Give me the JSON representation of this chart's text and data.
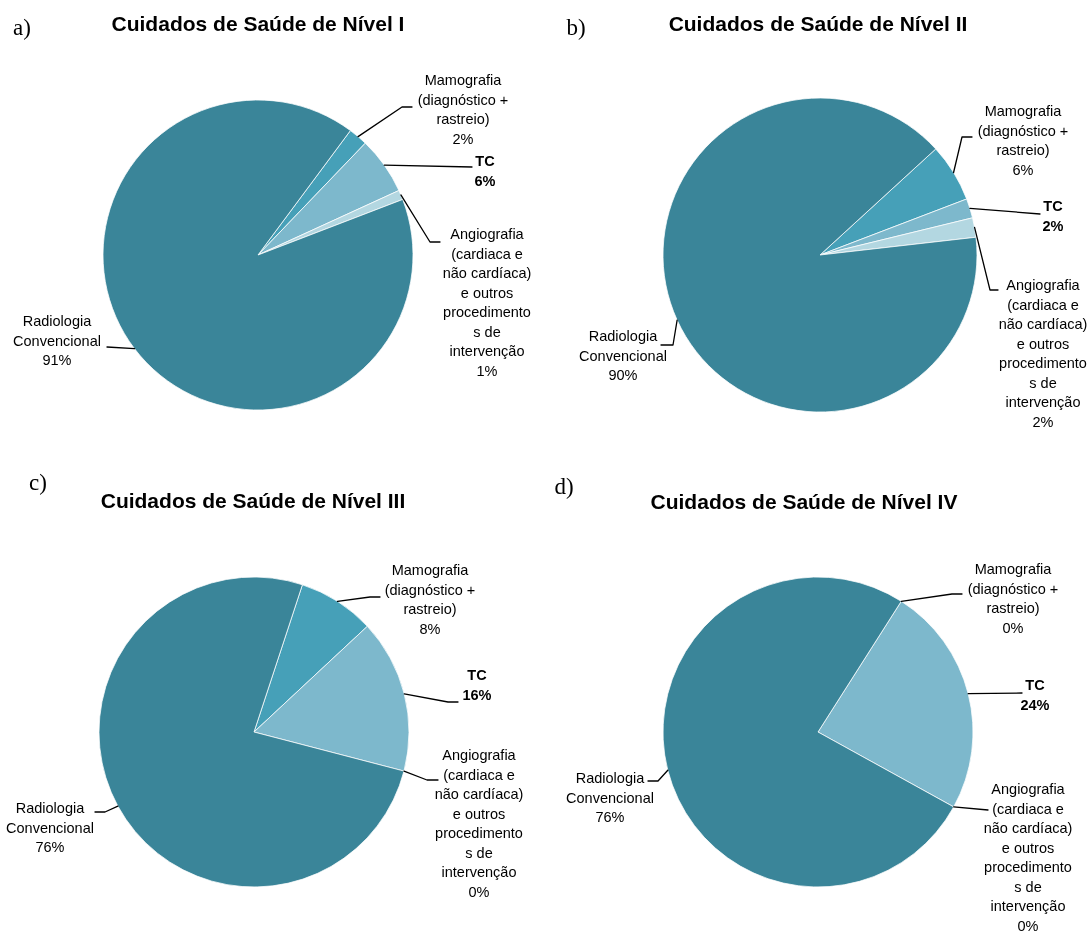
{
  "chart_data": [
    {
      "type": "pie",
      "title": "Cuidados de Saúde de Nível I",
      "annotations": [
        "a)"
      ],
      "categories": [
        "Mamografia (diagnóstico + rastreio)",
        "TC",
        "Angiografia (cardiaca e não cardíaca) e outros procedimento s de intervenção",
        "Radiologia Convencional"
      ],
      "values": [
        2,
        6,
        1,
        91
      ],
      "value_labels": [
        "2%",
        "6%",
        "1%",
        "91%"
      ],
      "colors": [
        "#46a0b8",
        "#7db8cc",
        "#b3d7e1",
        "#3a8599"
      ]
    },
    {
      "type": "pie",
      "title": "Cuidados de Saúde de Nível  II",
      "annotations": [
        "b)"
      ],
      "categories": [
        "Mamografia (diagnóstico + rastreio)",
        "TC",
        "Angiografia (cardiaca e não cardíaca) e outros procedimento s de intervenção",
        "Radiologia Convencional"
      ],
      "values": [
        6,
        2,
        2,
        90
      ],
      "value_labels": [
        "6%",
        "2%",
        "2%",
        "90%"
      ],
      "colors": [
        "#46a0b8",
        "#7db8cc",
        "#b3d7e1",
        "#3a8599"
      ]
    },
    {
      "type": "pie",
      "title": "Cuidados de Saúde de Nível  III",
      "annotations": [
        "c)"
      ],
      "categories": [
        "Mamografia (diagnóstico + rastreio)",
        "TC",
        "Angiografia (cardiaca e não cardíaca) e outros procedimento s de intervenção",
        "Radiologia Convencional"
      ],
      "values": [
        8,
        16,
        0,
        76
      ],
      "value_labels": [
        "8%",
        "16%",
        "0%",
        "76%"
      ],
      "colors": [
        "#46a0b8",
        "#7db8cc",
        "#b3d7e1",
        "#3a8599"
      ]
    },
    {
      "type": "pie",
      "title": "Cuidados de Saúde de Nível  IV",
      "annotations": [
        "d)"
      ],
      "categories": [
        "Mamografia (diagnóstico + rastreio)",
        "TC",
        "Angiografia (cardiaca e não cardíaca) e outros procedimento s de intervenção",
        "Radiologia Convencional"
      ],
      "values": [
        0,
        24,
        0,
        76
      ],
      "value_labels": [
        "0%",
        "24%",
        "0%",
        "76%"
      ],
      "colors": [
        "#46a0b8",
        "#7db8cc",
        "#b3d7e1",
        "#3a8599"
      ]
    }
  ]
}
